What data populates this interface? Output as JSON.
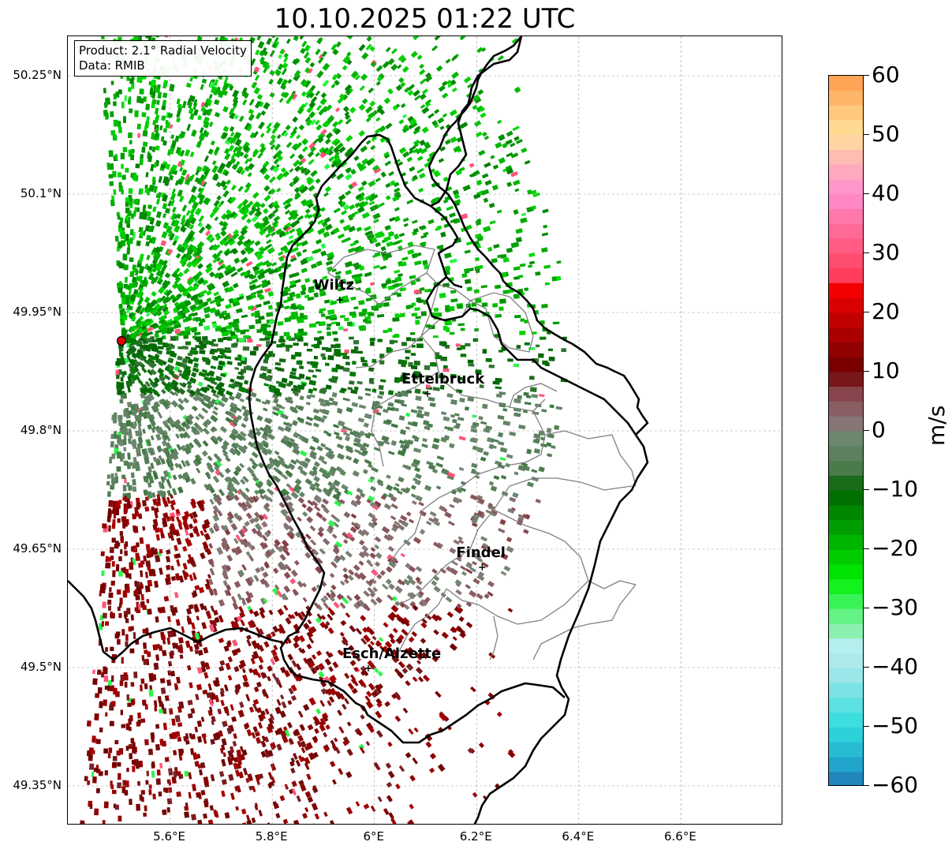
{
  "title": "10.10.2025 01:22 UTC",
  "info": {
    "product": "Product: 2.1° Radial Velocity",
    "data_source": "Data: RMIB"
  },
  "map": {
    "lon_range": [
      5.4,
      6.8
    ],
    "lat_range": [
      49.3,
      50.3
    ],
    "lat_ticks": [
      {
        "value": 50.25,
        "label": "50.25°N"
      },
      {
        "value": 50.1,
        "label": "50.1°N"
      },
      {
        "value": 49.95,
        "label": "49.95°N"
      },
      {
        "value": 49.8,
        "label": "49.8°N"
      },
      {
        "value": 49.65,
        "label": "49.65°N"
      },
      {
        "value": 49.5,
        "label": "49.5°N"
      },
      {
        "value": 49.35,
        "label": "49.35°N"
      }
    ],
    "lon_ticks": [
      {
        "value": 5.6,
        "label": "5.6°E"
      },
      {
        "value": 5.8,
        "label": "5.8°E"
      },
      {
        "value": 6.0,
        "label": "6°E"
      },
      {
        "value": 6.2,
        "label": "6.2°E"
      },
      {
        "value": 6.4,
        "label": "6.4°E"
      },
      {
        "value": 6.6,
        "label": "6.6°E"
      }
    ],
    "radar_site": {
      "lon": 5.505,
      "lat": 49.914,
      "color": "#e00000"
    },
    "cities": [
      {
        "name": "Wiltz",
        "lon": 5.932,
        "lat": 49.966
      },
      {
        "name": "Ettelbruck",
        "lon": 6.104,
        "lat": 49.847
      },
      {
        "name": "Findel",
        "lon": 6.211,
        "lat": 49.627
      },
      {
        "name": "Esch/Alzette",
        "lon": 5.988,
        "lat": 49.499
      }
    ]
  },
  "colorbar": {
    "unit": "m/s",
    "min": -60,
    "max": 60,
    "tick_values": [
      60,
      50,
      40,
      30,
      20,
      10,
      0,
      -10,
      -20,
      -30,
      -40,
      -50,
      -60
    ],
    "tick_labels": [
      "60",
      "50",
      "40",
      "30",
      "20",
      "10",
      "0",
      "−10",
      "−20",
      "−30",
      "−40",
      "−50",
      "−60"
    ],
    "color_stops": [
      {
        "v": -60,
        "c": "#1f77b4"
      },
      {
        "v": -56,
        "c": "#22a8cf"
      },
      {
        "v": -50,
        "c": "#2fdcdc"
      },
      {
        "v": -40,
        "c": "#a9e7ea"
      },
      {
        "v": -35,
        "c": "#b8f0ee"
      },
      {
        "v": -34,
        "c": "#90f0b4"
      },
      {
        "v": -28,
        "c": "#2ef54a"
      },
      {
        "v": -25,
        "c": "#00ee00"
      },
      {
        "v": -10,
        "c": "#006400"
      },
      {
        "v": -6,
        "c": "#4f7c50"
      },
      {
        "v": -1,
        "c": "#6e8870"
      },
      {
        "v": 1,
        "c": "#877877"
      },
      {
        "v": 6,
        "c": "#8a4a52"
      },
      {
        "v": 10,
        "c": "#6e0000"
      },
      {
        "v": 25,
        "c": "#ff0000"
      },
      {
        "v": 26,
        "c": "#ff3d5a"
      },
      {
        "v": 35,
        "c": "#ff70a0"
      },
      {
        "v": 40,
        "c": "#ff8fd0"
      },
      {
        "v": 45,
        "c": "#ffb0b8"
      },
      {
        "v": 50,
        "c": "#ffe39a"
      },
      {
        "v": 60,
        "c": "#ff9a4a"
      }
    ]
  }
}
